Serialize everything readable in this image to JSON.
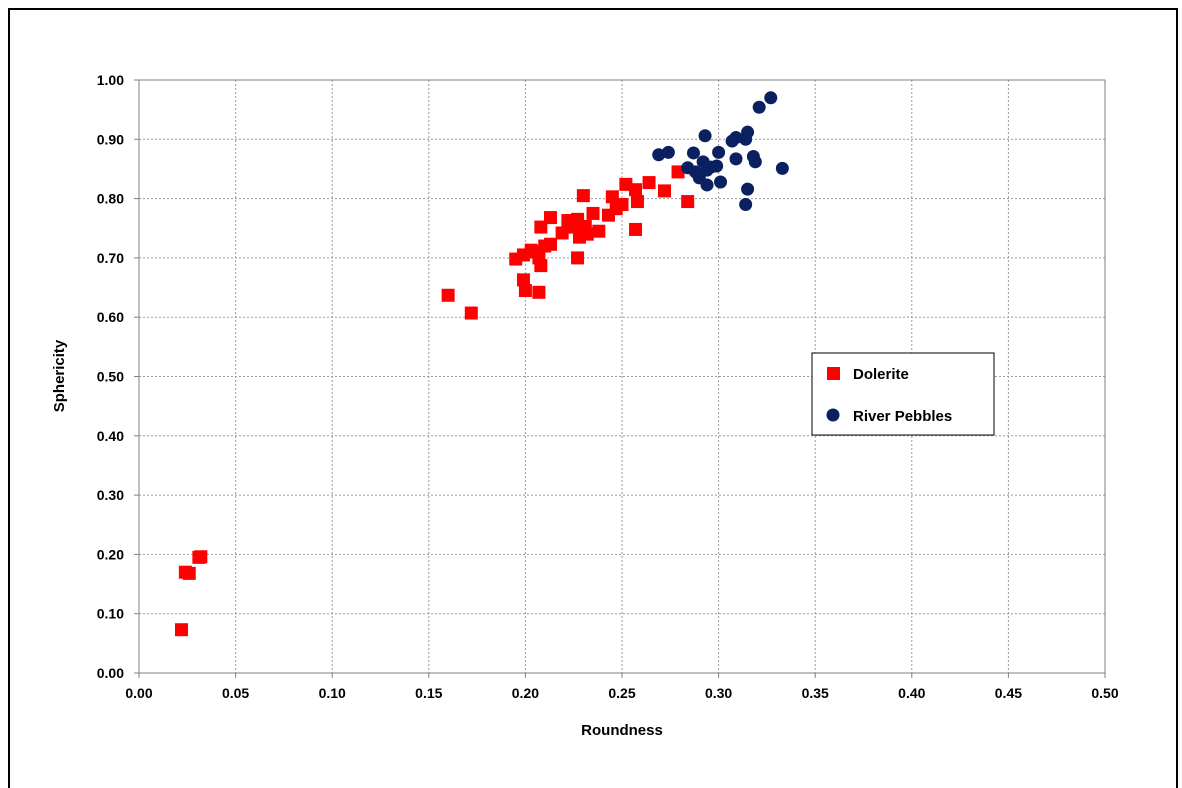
{
  "chart_data": {
    "type": "scatter",
    "xlabel": "Roundness",
    "ylabel": "Sphericity",
    "xlim": [
      0,
      0.5
    ],
    "ylim": [
      0,
      1
    ],
    "x_ticks": [
      "0.00",
      "0.05",
      "0.10",
      "0.15",
      "0.20",
      "0.25",
      "0.30",
      "0.35",
      "0.40",
      "0.45",
      "0.50"
    ],
    "y_ticks": [
      "0.00",
      "0.10",
      "0.20",
      "0.30",
      "0.40",
      "0.50",
      "0.60",
      "0.70",
      "0.80",
      "0.90",
      "1.00"
    ],
    "grid": true,
    "legend_position": "right",
    "series": [
      {
        "name": "Dolerite",
        "marker": "square",
        "color": "#ff0000",
        "points": [
          [
            0.022,
            0.073
          ],
          [
            0.024,
            0.17
          ],
          [
            0.026,
            0.168
          ],
          [
            0.031,
            0.195
          ],
          [
            0.032,
            0.196
          ],
          [
            0.16,
            0.637
          ],
          [
            0.172,
            0.607
          ],
          [
            0.195,
            0.698
          ],
          [
            0.199,
            0.705
          ],
          [
            0.199,
            0.663
          ],
          [
            0.2,
            0.645
          ],
          [
            0.203,
            0.713
          ],
          [
            0.205,
            0.71
          ],
          [
            0.207,
            0.7
          ],
          [
            0.207,
            0.642
          ],
          [
            0.208,
            0.687
          ],
          [
            0.208,
            0.752
          ],
          [
            0.21,
            0.72
          ],
          [
            0.213,
            0.723
          ],
          [
            0.213,
            0.768
          ],
          [
            0.219,
            0.742
          ],
          [
            0.222,
            0.763
          ],
          [
            0.225,
            0.752
          ],
          [
            0.227,
            0.765
          ],
          [
            0.227,
            0.7
          ],
          [
            0.228,
            0.735
          ],
          [
            0.23,
            0.805
          ],
          [
            0.231,
            0.753
          ],
          [
            0.232,
            0.74
          ],
          [
            0.235,
            0.775
          ],
          [
            0.238,
            0.745
          ],
          [
            0.243,
            0.772
          ],
          [
            0.245,
            0.803
          ],
          [
            0.247,
            0.783
          ],
          [
            0.25,
            0.79
          ],
          [
            0.252,
            0.824
          ],
          [
            0.257,
            0.815
          ],
          [
            0.258,
            0.795
          ],
          [
            0.257,
            0.748
          ],
          [
            0.264,
            0.827
          ],
          [
            0.272,
            0.813
          ],
          [
            0.279,
            0.845
          ],
          [
            0.284,
            0.795
          ]
        ]
      },
      {
        "name": "River Pebbles",
        "marker": "circle",
        "color": "#0a2060",
        "points": [
          [
            0.269,
            0.874
          ],
          [
            0.274,
            0.878
          ],
          [
            0.284,
            0.852
          ],
          [
            0.287,
            0.877
          ],
          [
            0.288,
            0.845
          ],
          [
            0.29,
            0.835
          ],
          [
            0.292,
            0.862
          ],
          [
            0.293,
            0.906
          ],
          [
            0.294,
            0.848
          ],
          [
            0.294,
            0.823
          ],
          [
            0.296,
            0.853
          ],
          [
            0.299,
            0.855
          ],
          [
            0.3,
            0.878
          ],
          [
            0.301,
            0.828
          ],
          [
            0.307,
            0.897
          ],
          [
            0.309,
            0.903
          ],
          [
            0.309,
            0.867
          ],
          [
            0.314,
            0.9
          ],
          [
            0.315,
            0.912
          ],
          [
            0.315,
            0.816
          ],
          [
            0.314,
            0.79
          ],
          [
            0.318,
            0.871
          ],
          [
            0.319,
            0.862
          ],
          [
            0.321,
            0.954
          ],
          [
            0.327,
            0.97
          ],
          [
            0.333,
            0.851
          ]
        ]
      }
    ]
  }
}
